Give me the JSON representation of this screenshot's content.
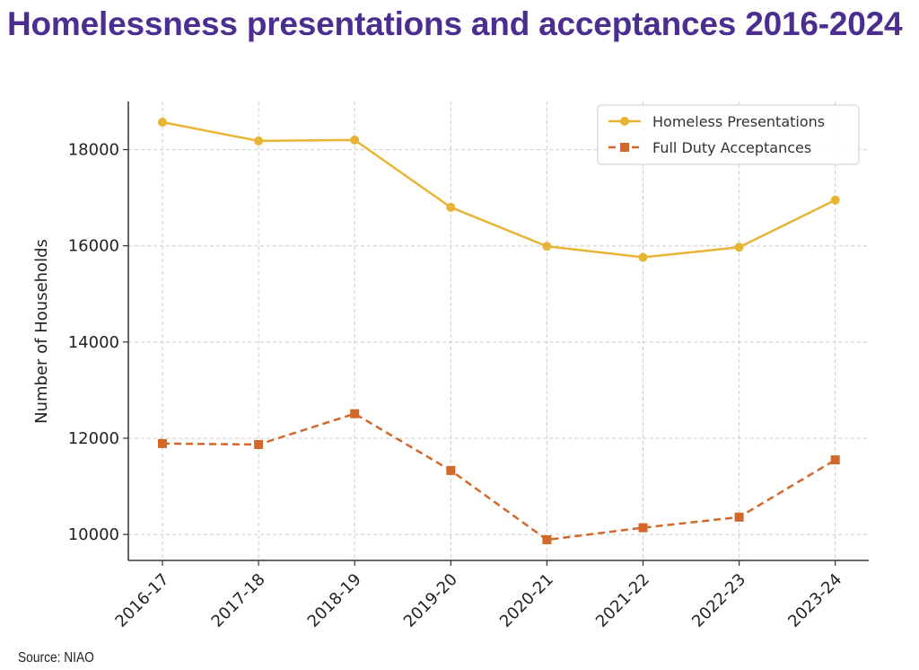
{
  "title": "Homelessness presentations and acceptances 2016-2024",
  "source": "Source: NIAO",
  "colors": {
    "title": "#4b2e8f",
    "presentations": "#e8b434",
    "acceptances": "#d2692a",
    "grid": "#cccccc",
    "axis": "#333333"
  },
  "chart_data": {
    "type": "line",
    "title": "Homelessness presentations and acceptances 2016-2024",
    "xlabel": "",
    "ylabel": "Number of Households",
    "categories": [
      "2016-17",
      "2017-18",
      "2018-19",
      "2019-20",
      "2020-21",
      "2021-22",
      "2022-23",
      "2023-24"
    ],
    "series": [
      {
        "name": "Homeless Presentations",
        "style": "solid",
        "marker": "circle",
        "color": "#e8b434",
        "values": [
          18570,
          18180,
          18200,
          16800,
          15990,
          15760,
          15970,
          16950
        ]
      },
      {
        "name": "Full Duty Acceptances",
        "style": "dashed",
        "marker": "square",
        "color": "#d2692a",
        "values": [
          11890,
          11870,
          12510,
          11330,
          9890,
          10140,
          10360,
          11550
        ]
      }
    ],
    "yticks": [
      10000,
      12000,
      14000,
      16000,
      18000
    ],
    "ylim": [
      9460,
      19000
    ],
    "grid": true,
    "legend_position": "top-right"
  }
}
